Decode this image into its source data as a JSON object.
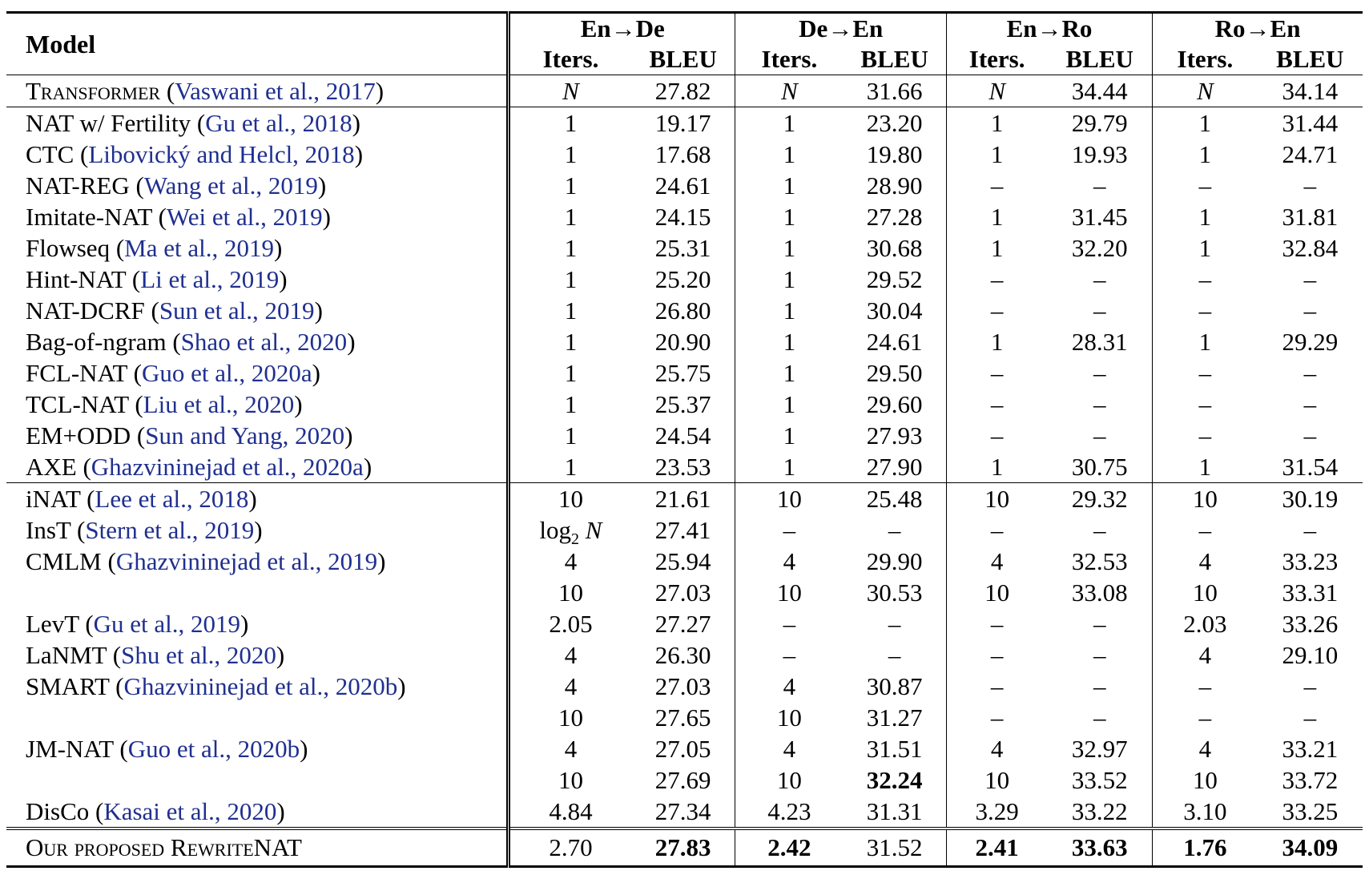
{
  "header": {
    "model": "Model",
    "groups": [
      "En→De",
      "De→En",
      "En→Ro",
      "Ro→En"
    ],
    "sub_iters": "Iters.",
    "sub_bleu": "BLEU"
  },
  "rows": [
    {
      "name": "Transformer",
      "cite": "Vaswani et al., 2017",
      "vals": [
        "N",
        "27.82",
        "N",
        "31.66",
        "N",
        "34.44",
        "N",
        "34.14"
      ]
    },
    {
      "name": "NAT w/ Fertility",
      "cite": "Gu et al., 2018",
      "vals": [
        "1",
        "19.17",
        "1",
        "23.20",
        "1",
        "29.79",
        "1",
        "31.44"
      ]
    },
    {
      "name": "CTC",
      "cite": "Libovický and Helcl, 2018",
      "vals": [
        "1",
        "17.68",
        "1",
        "19.80",
        "1",
        "19.93",
        "1",
        "24.71"
      ]
    },
    {
      "name": "NAT-REG",
      "cite": "Wang et al., 2019",
      "vals": [
        "1",
        "24.61",
        "1",
        "28.90",
        "–",
        "–",
        "–",
        "–"
      ]
    },
    {
      "name": "Imitate-NAT",
      "cite": "Wei et al., 2019",
      "vals": [
        "1",
        "24.15",
        "1",
        "27.28",
        "1",
        "31.45",
        "1",
        "31.81"
      ]
    },
    {
      "name": "Flowseq",
      "cite": "Ma et al., 2019",
      "vals": [
        "1",
        "25.31",
        "1",
        "30.68",
        "1",
        "32.20",
        "1",
        "32.84"
      ]
    },
    {
      "name": "Hint-NAT",
      "cite": "Li et al., 2019",
      "vals": [
        "1",
        "25.20",
        "1",
        "29.52",
        "–",
        "–",
        "–",
        "–"
      ]
    },
    {
      "name": "NAT-DCRF",
      "cite": "Sun et al., 2019",
      "vals": [
        "1",
        "26.80",
        "1",
        "30.04",
        "–",
        "–",
        "–",
        "–"
      ]
    },
    {
      "name": "Bag-of-ngram",
      "cite": "Shao et al., 2020",
      "vals": [
        "1",
        "20.90",
        "1",
        "24.61",
        "1",
        "28.31",
        "1",
        "29.29"
      ]
    },
    {
      "name": "FCL-NAT",
      "cite": "Guo et al., 2020a",
      "vals": [
        "1",
        "25.75",
        "1",
        "29.50",
        "–",
        "–",
        "–",
        "–"
      ]
    },
    {
      "name": "TCL-NAT",
      "cite": "Liu et al., 2020",
      "vals": [
        "1",
        "25.37",
        "1",
        "29.60",
        "–",
        "–",
        "–",
        "–"
      ]
    },
    {
      "name": "EM+ODD",
      "cite": "Sun and Yang, 2020",
      "vals": [
        "1",
        "24.54",
        "1",
        "27.93",
        "–",
        "–",
        "–",
        "–"
      ]
    },
    {
      "name": "AXE",
      "cite": "Ghazvininejad et al., 2020a",
      "vals": [
        "1",
        "23.53",
        "1",
        "27.90",
        "1",
        "30.75",
        "1",
        "31.54"
      ]
    },
    {
      "name": "iNAT",
      "cite": "Lee et al., 2018",
      "vals": [
        "10",
        "21.61",
        "10",
        "25.48",
        "10",
        "29.32",
        "10",
        "30.19"
      ]
    },
    {
      "name": "InsT",
      "cite": "Stern et al., 2019",
      "vals": [
        "N",
        "27.41",
        "–",
        "–",
        "–",
        "–",
        "–",
        "–"
      ]
    },
    {
      "name": "CMLM",
      "cite": "Ghazvininejad et al., 2019",
      "vals": [
        "4",
        "25.94",
        "4",
        "29.90",
        "4",
        "32.53",
        "4",
        "33.23"
      ]
    },
    {
      "name": "",
      "cite": "",
      "vals": [
        "10",
        "27.03",
        "10",
        "30.53",
        "10",
        "33.08",
        "10",
        "33.31"
      ]
    },
    {
      "name": "LevT",
      "cite": "Gu et al., 2019",
      "vals": [
        "2.05",
        "27.27",
        "–",
        "–",
        "–",
        "–",
        "2.03",
        "33.26"
      ]
    },
    {
      "name": "LaNMT",
      "cite": "Shu et al., 2020",
      "vals": [
        "4",
        "26.30",
        "–",
        "–",
        "–",
        "–",
        "4",
        "29.10"
      ]
    },
    {
      "name": "SMART",
      "cite": "Ghazvininejad et al., 2020b",
      "vals": [
        "4",
        "27.03",
        "4",
        "30.87",
        "–",
        "–",
        "–",
        "–"
      ]
    },
    {
      "name": "",
      "cite": "",
      "vals": [
        "10",
        "27.65",
        "10",
        "31.27",
        "–",
        "–",
        "–",
        "–"
      ]
    },
    {
      "name": "JM-NAT",
      "cite": "Guo et al., 2020b",
      "vals": [
        "4",
        "27.05",
        "4",
        "31.51",
        "4",
        "32.97",
        "4",
        "33.21"
      ]
    },
    {
      "name": "",
      "cite": "",
      "vals": [
        "10",
        "27.69",
        "10",
        "32.24",
        "10",
        "33.52",
        "10",
        "33.72"
      ]
    },
    {
      "name": "DisCo",
      "cite": "Kasai et al., 2020",
      "vals": [
        "4.84",
        "27.34",
        "4.23",
        "31.31",
        "3.29",
        "33.22",
        "3.10",
        "33.25"
      ]
    },
    {
      "name": "Our proposed RewriteNAT",
      "cite": "",
      "vals": [
        "2.70",
        "27.83",
        "2.42",
        "31.52",
        "2.41",
        "33.63",
        "1.76",
        "34.09"
      ]
    }
  ],
  "log_prefix": "log",
  "log_sub": "2"
}
